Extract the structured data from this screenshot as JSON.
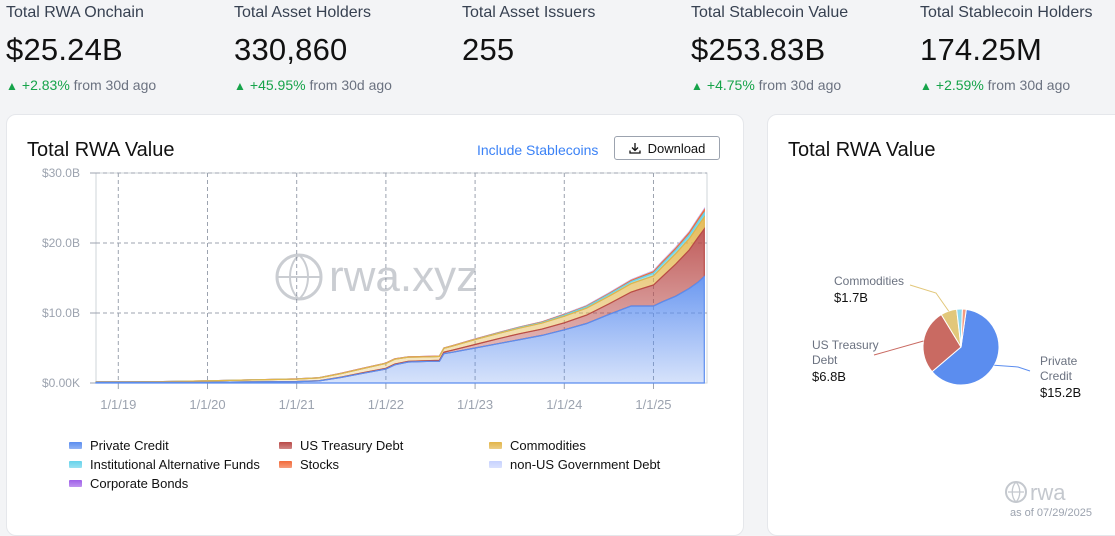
{
  "stats": [
    {
      "label": "Total RWA Onchain",
      "value": "$25.24B",
      "change": "+2.83%",
      "suffix": "from 30d ago"
    },
    {
      "label": "Total Asset Holders",
      "value": "330,860",
      "change": "+45.95%",
      "suffix": "from 30d ago"
    },
    {
      "label": "Total Asset Issuers",
      "value": "255",
      "change": "",
      "suffix": ""
    },
    {
      "label": "Total Stablecoin Value",
      "value": "$253.83B",
      "change": "+4.75%",
      "suffix": "from 30d ago"
    },
    {
      "label": "Total Stablecoin Holders",
      "value": "174.25M",
      "change": "+2.59%",
      "suffix": "from 30d ago"
    }
  ],
  "main_card": {
    "title": "Total RWA Value",
    "include_link": "Include Stablecoins",
    "download_label": "Download",
    "watermark": "rwa.xyz"
  },
  "pie_card": {
    "title": "Total RWA Value",
    "labels": [
      {
        "name": "Commodities",
        "value": "$1.7B"
      },
      {
        "name": "US Treasury Debt",
        "value": "$6.8B"
      },
      {
        "name": "Private Credit",
        "value": "$15.2B"
      }
    ]
  },
  "footer": {
    "brand": "rwa",
    "asof": "as of 07/29/2025"
  },
  "colors": {
    "private_credit": "#5b8def",
    "us_treasury": "#b94a48",
    "commodities": "#e2b549",
    "inst_alt": "#66d3ea",
    "stocks": "#f26b3a",
    "non_us_gov": "#c7d2fe",
    "corporate": "#9f5fe8",
    "positive": "#16a34a",
    "link": "#3b82f6"
  },
  "chart_data": [
    {
      "type": "area",
      "title": "Total RWA Value",
      "stacked": true,
      "y_ticks": [
        "$0.00K",
        "$10.0B",
        "$20.0B",
        "$30.0B"
      ],
      "x_ticks": [
        "1/1/19",
        "1/1/20",
        "1/1/21",
        "1/1/22",
        "1/1/23",
        "1/1/24",
        "1/1/25"
      ],
      "ylim": [
        0,
        30
      ],
      "grid": true,
      "legend_position": "bottom",
      "x": [
        2018.75,
        2019.0,
        2019.5,
        2020.0,
        2020.5,
        2021.0,
        2021.25,
        2021.5,
        2021.75,
        2022.0,
        2022.1,
        2022.25,
        2022.5,
        2022.6,
        2022.65,
        2022.75,
        2023.0,
        2023.25,
        2023.5,
        2023.75,
        2024.0,
        2024.25,
        2024.5,
        2024.75,
        2025.0,
        2025.1,
        2025.25,
        2025.4,
        2025.5,
        2025.57
      ],
      "series": [
        {
          "name": "Private Credit",
          "color": "#5b8def",
          "values": [
            0.1,
            0.1,
            0.1,
            0.1,
            0.15,
            0.2,
            0.3,
            0.8,
            1.4,
            2.0,
            2.6,
            3.0,
            3.1,
            3.1,
            4.2,
            4.4,
            5.0,
            5.6,
            6.2,
            6.8,
            7.6,
            8.5,
            9.8,
            11.0,
            11.0,
            11.6,
            12.4,
            13.5,
            14.4,
            15.2
          ]
        },
        {
          "name": "US Treasury Debt",
          "color": "#b94a48",
          "values": [
            0,
            0,
            0,
            0,
            0,
            0.02,
            0.03,
            0.05,
            0.08,
            0.1,
            0.1,
            0.1,
            0.1,
            0.15,
            0.2,
            0.3,
            0.5,
            0.7,
            0.85,
            0.9,
            1.0,
            1.2,
            1.5,
            2.0,
            3.0,
            3.6,
            4.6,
            5.5,
            6.4,
            6.8
          ]
        },
        {
          "name": "Commodities",
          "color": "#e2b549",
          "values": [
            0.05,
            0.05,
            0.1,
            0.2,
            0.3,
            0.35,
            0.4,
            0.5,
            0.6,
            0.7,
            0.7,
            0.6,
            0.55,
            0.55,
            0.55,
            0.6,
            0.7,
            0.75,
            0.8,
            0.85,
            0.95,
            1.0,
            1.1,
            1.2,
            1.3,
            1.4,
            1.5,
            1.6,
            1.65,
            1.7
          ]
        },
        {
          "name": "Institutional Alternative Funds",
          "color": "#66d3ea",
          "values": [
            0,
            0,
            0,
            0,
            0,
            0,
            0,
            0,
            0,
            0,
            0,
            0,
            0,
            0,
            0,
            0,
            0.02,
            0.05,
            0.08,
            0.1,
            0.15,
            0.2,
            0.25,
            0.3,
            0.4,
            0.45,
            0.5,
            0.55,
            0.6,
            0.6
          ]
        },
        {
          "name": "Stocks",
          "color": "#f26b3a",
          "values": [
            0,
            0,
            0,
            0,
            0,
            0.02,
            0.03,
            0.05,
            0.05,
            0.05,
            0.05,
            0.05,
            0.05,
            0.05,
            0.05,
            0.05,
            0.05,
            0.05,
            0.05,
            0.06,
            0.08,
            0.1,
            0.12,
            0.15,
            0.2,
            0.22,
            0.25,
            0.3,
            0.35,
            0.4
          ]
        },
        {
          "name": "non-US Government Debt",
          "color": "#c7d2fe",
          "values": [
            0,
            0,
            0,
            0,
            0,
            0,
            0,
            0,
            0,
            0,
            0,
            0,
            0,
            0,
            0,
            0,
            0.01,
            0.02,
            0.03,
            0.04,
            0.05,
            0.06,
            0.07,
            0.08,
            0.09,
            0.1,
            0.1,
            0.1,
            0.1,
            0.1
          ]
        },
        {
          "name": "Corporate Bonds",
          "color": "#9f5fe8",
          "values": [
            0,
            0,
            0,
            0,
            0,
            0,
            0,
            0,
            0,
            0,
            0,
            0,
            0,
            0,
            0,
            0,
            0,
            0,
            0,
            0,
            0.01,
            0.01,
            0.02,
            0.02,
            0.03,
            0.03,
            0.03,
            0.04,
            0.04,
            0.04
          ]
        }
      ]
    },
    {
      "type": "pie",
      "title": "Total RWA Value",
      "slices": [
        {
          "name": "Private Credit",
          "value": 15.2,
          "color": "#5b8def"
        },
        {
          "name": "US Treasury Debt",
          "value": 6.8,
          "color": "#c96a62"
        },
        {
          "name": "Commodities",
          "value": 1.7,
          "color": "#e2c77a"
        },
        {
          "name": "Institutional Alternative Funds",
          "value": 0.6,
          "color": "#8fd9ee"
        },
        {
          "name": "Stocks",
          "value": 0.4,
          "color": "#f59b80"
        }
      ]
    }
  ]
}
